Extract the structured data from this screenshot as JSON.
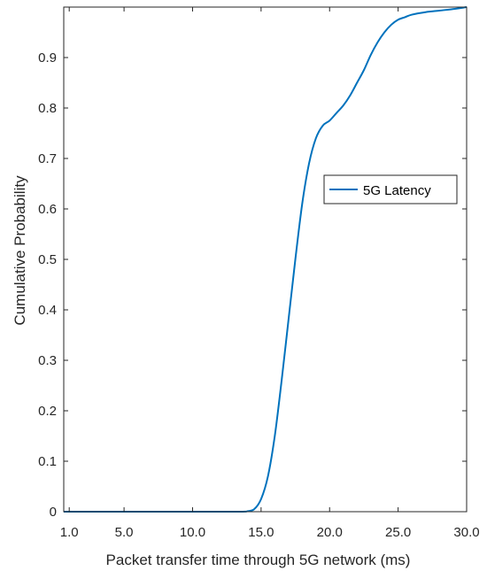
{
  "chart_data": {
    "type": "line",
    "title": "",
    "xlabel": "Packet transfer time through 5G network (ms)",
    "ylabel": "Cumulative Probability",
    "xlim": [
      0.6,
      30.0
    ],
    "ylim": [
      0,
      1
    ],
    "x_ticks": [
      1.0,
      5.0,
      10.0,
      15.0,
      20.0,
      25.0,
      30.0
    ],
    "x_tick_labels": [
      "1.0",
      "5.0",
      "10.0",
      "15.0",
      "20.0",
      "25.0",
      "30.0"
    ],
    "y_ticks": [
      0,
      0.1,
      0.2,
      0.3,
      0.4,
      0.5,
      0.6,
      0.7,
      0.8,
      0.9
    ],
    "y_tick_labels": [
      "0",
      "0.1",
      "0.2",
      "0.3",
      "0.4",
      "0.5",
      "0.6",
      "0.7",
      "0.8",
      "0.9"
    ],
    "grid": false,
    "legend_position": "right",
    "series": [
      {
        "name": "5G Latency",
        "color": "#0072BD",
        "x": [
          0.6,
          5.0,
          10.0,
          13.5,
          14.0,
          14.5,
          15.0,
          15.5,
          16.0,
          16.5,
          17.0,
          17.5,
          18.0,
          18.5,
          19.0,
          19.5,
          20.0,
          20.5,
          21.0,
          21.5,
          22.0,
          22.5,
          23.0,
          23.5,
          24.0,
          24.5,
          25.0,
          25.5,
          26.0,
          27.0,
          28.0,
          29.0,
          30.0
        ],
        "y": [
          0,
          0,
          0,
          0,
          0.001,
          0.005,
          0.025,
          0.07,
          0.15,
          0.26,
          0.38,
          0.5,
          0.61,
          0.69,
          0.74,
          0.765,
          0.775,
          0.79,
          0.805,
          0.825,
          0.85,
          0.875,
          0.905,
          0.93,
          0.95,
          0.965,
          0.975,
          0.98,
          0.985,
          0.99,
          0.993,
          0.996,
          1.0
        ]
      }
    ]
  }
}
